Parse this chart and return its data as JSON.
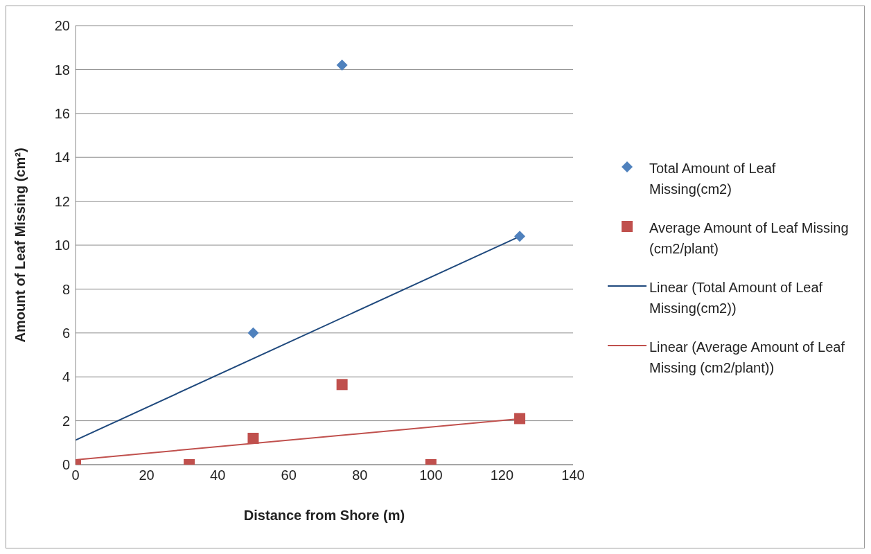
{
  "chart_data": {
    "type": "scatter",
    "xlabel": "Distance from Shore (m)",
    "ylabel": "Amount of Leaf Missing (cm²)",
    "xlim": [
      0,
      140
    ],
    "xticks": [
      0,
      20,
      40,
      60,
      80,
      100,
      120,
      140
    ],
    "ylim": [
      0,
      20
    ],
    "yticks": [
      0,
      2,
      4,
      6,
      8,
      10,
      12,
      14,
      16,
      18,
      20
    ],
    "grid": "y",
    "legend": "right",
    "series": [
      {
        "name": "Total Amount of Leaf Missing(cm2)",
        "marker": "diamond",
        "color": "#4f81bd",
        "x": [
          50,
          75,
          125
        ],
        "values": [
          6.0,
          18.2,
          10.4
        ]
      },
      {
        "name": "Average Amount of Leaf Missing (cm2/plant)",
        "marker": "square",
        "color": "#c0504d",
        "x": [
          0,
          32,
          50,
          75,
          100,
          125
        ],
        "values": [
          0,
          0,
          1.2,
          3.65,
          0,
          2.1
        ]
      },
      {
        "name": "Linear (Total Amount of Leaf Missing(cm2))",
        "type": "line",
        "marker": "none",
        "line_style": "solid",
        "color": "#1f497d",
        "x": [
          0,
          125
        ],
        "values": [
          1.12,
          10.4
        ]
      },
      {
        "name": "Linear (Average Amount of Leaf Missing (cm2/plant))",
        "type": "line",
        "marker": "none",
        "line_style": "solid",
        "color": "#c0504d",
        "x": [
          0,
          125
        ],
        "values": [
          0.22,
          2.09
        ]
      }
    ]
  }
}
